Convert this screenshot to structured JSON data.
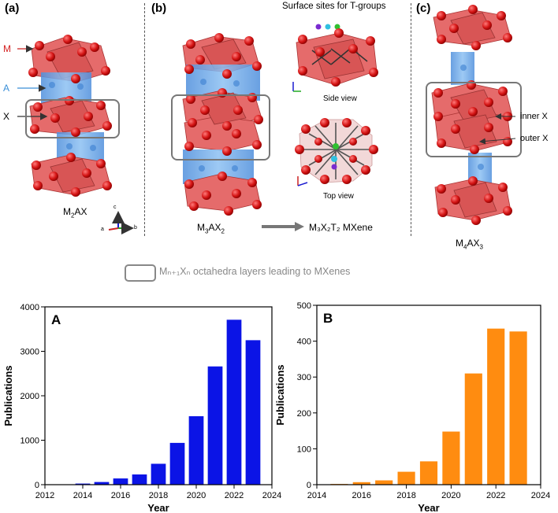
{
  "top": {
    "panels": [
      {
        "label": "(a)",
        "formula_parts": [
          "M",
          "2",
          "AX",
          ""
        ]
      },
      {
        "label": "(b)",
        "formula_parts": [
          "M",
          "3",
          "AX",
          "2"
        ],
        "arrow_target": "M₃X₂T₂ MXene"
      },
      {
        "label": "(c)",
        "formula_parts": [
          "M",
          "4",
          "AX",
          "3"
        ]
      }
    ],
    "atom_labels": {
      "m": "M",
      "a": "A",
      "x": "X"
    },
    "surface_title": "Surface sites for T-groups",
    "side_view": "Side view",
    "top_view": "Top view",
    "inner_x": "inner X",
    "outer_x": "outer X",
    "legend_text": "Mₙ₊₁Xₙ octahedra layers leading to MXenes",
    "axis_small": {
      "a": "a",
      "b": "b",
      "c": "c"
    }
  },
  "colors": {
    "blue_bar": "#0b14e6",
    "orange_bar": "#ff8c10",
    "octa_red": "#e06060",
    "atom_red": "#d41414",
    "a_layer": "#6aa8e8"
  },
  "chart_data": [
    {
      "type": "bar",
      "panel_label": "A",
      "xlabel": "Year",
      "ylabel": "Publications",
      "x": [
        2013,
        2014,
        2015,
        2016,
        2017,
        2018,
        2019,
        2020,
        2021,
        2022,
        2023
      ],
      "values": [
        3,
        25,
        60,
        140,
        230,
        470,
        940,
        1540,
        2660,
        3710,
        3250
      ],
      "xlim": [
        2012,
        2024
      ],
      "ylim": [
        0,
        4000
      ],
      "xticks": [
        2012,
        2014,
        2016,
        2018,
        2020,
        2022,
        2024
      ],
      "yticks": [
        0,
        1000,
        2000,
        3000,
        4000
      ],
      "color": "#0b14e6"
    },
    {
      "type": "bar",
      "panel_label": "B",
      "xlabel": "Year",
      "ylabel": "Publications",
      "x": [
        2015,
        2016,
        2017,
        2018,
        2019,
        2020,
        2021,
        2022,
        2023
      ],
      "values": [
        2,
        7,
        12,
        36,
        65,
        148,
        310,
        435,
        427
      ],
      "xlim": [
        2014,
        2024
      ],
      "ylim": [
        0,
        500
      ],
      "xticks": [
        2014,
        2016,
        2018,
        2020,
        2022,
        2024
      ],
      "yticks": [
        0,
        100,
        200,
        300,
        400,
        500
      ],
      "color": "#ff8c10"
    }
  ]
}
